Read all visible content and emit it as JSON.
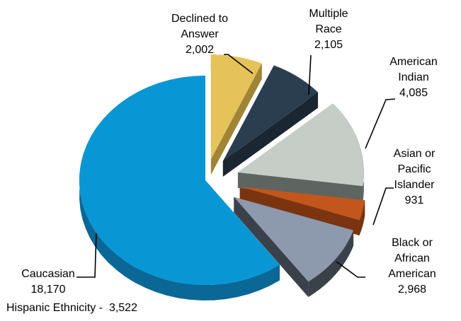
{
  "chart_data": {
    "type": "pie",
    "style": "3d-exploded",
    "categories": [
      "Caucasian",
      "Declined to Answer",
      "Multiple Race",
      "American Indian",
      "Asian or Pacific Islander",
      "Black or African American"
    ],
    "values": [
      18170,
      2002,
      2105,
      4085,
      931,
      2968
    ],
    "label_lines": [
      [
        "Caucasian",
        "18,170"
      ],
      [
        "Declined to",
        "Answer",
        "2,002"
      ],
      [
        "Multiple",
        "Race",
        "2,105"
      ],
      [
        "American",
        "Indian",
        "4,085"
      ],
      [
        "Asian or",
        "Pacific",
        "Islander",
        "931"
      ],
      [
        "Black or",
        "African",
        "American",
        "2,968"
      ]
    ],
    "colors": [
      "#0996d4",
      "#e5c35a",
      "#2b3e4f",
      "#c5cdc6",
      "#c2561c",
      "#8d99ad"
    ],
    "side_colors": [
      "#0a6796",
      "#a08536",
      "#1a2631",
      "#5e6561",
      "#7a3410",
      "#3b414b"
    ],
    "annotation": "Hispanic Ethnicity -  3,522"
  }
}
